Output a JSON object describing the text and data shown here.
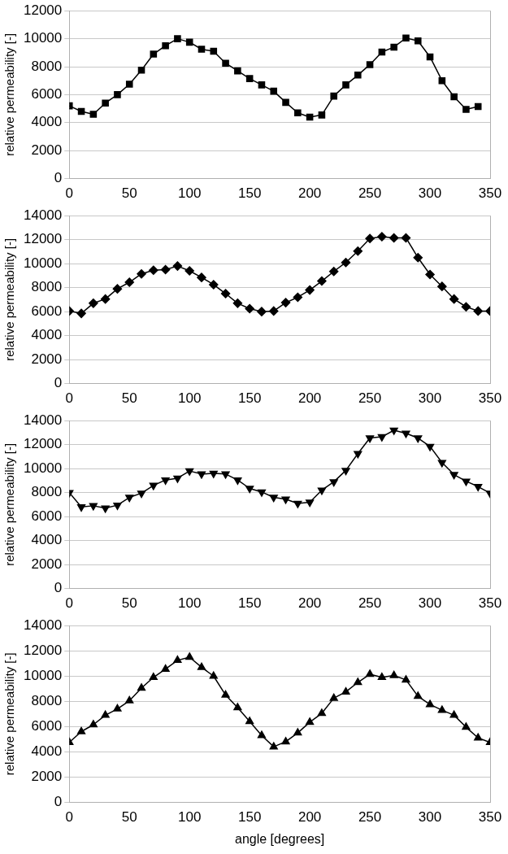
{
  "chart_data": [
    {
      "type": "line",
      "ylabel": "relative permeability [-]",
      "x": [
        0,
        10,
        20,
        30,
        40,
        50,
        60,
        70,
        80,
        90,
        100,
        110,
        120,
        130,
        140,
        150,
        160,
        170,
        180,
        190,
        200,
        210,
        220,
        230,
        240,
        250,
        260,
        270,
        280,
        290,
        300,
        310,
        320,
        330,
        340
      ],
      "series": [
        {
          "color": "#000000",
          "values": [
            5200,
            4800,
            4600,
            5400,
            6000,
            6750,
            7750,
            8900,
            9500,
            10000,
            9750,
            9250,
            9100,
            8250,
            7700,
            7150,
            6700,
            6250,
            5450,
            4700,
            4400,
            4550,
            5900,
            6700,
            7400,
            8150,
            9050,
            9400,
            10050,
            9850,
            8700,
            7000,
            5850,
            4950,
            5150
          ]
        }
      ],
      "xlim": [
        0,
        350
      ],
      "xticks": [
        0,
        50,
        100,
        150,
        200,
        250,
        300,
        350
      ],
      "ylim": [
        0,
        12000
      ],
      "yticks": [
        0,
        2000,
        4000,
        6000,
        8000,
        10000,
        12000
      ],
      "grid": "y",
      "marker": "square",
      "legend": false
    },
    {
      "type": "line",
      "ylabel": "relative permeability [-]",
      "x": [
        0,
        10,
        20,
        30,
        40,
        50,
        60,
        70,
        80,
        90,
        100,
        110,
        120,
        130,
        140,
        150,
        160,
        170,
        180,
        190,
        200,
        210,
        220,
        230,
        240,
        250,
        260,
        270,
        280,
        290,
        300,
        310,
        320,
        330,
        340,
        350
      ],
      "series": [
        {
          "color": "#000000",
          "values": [
            6050,
            5850,
            6700,
            7050,
            7900,
            8450,
            9150,
            9450,
            9500,
            9800,
            9400,
            8850,
            8250,
            7500,
            6700,
            6250,
            6000,
            6050,
            6750,
            7200,
            7800,
            8550,
            9350,
            10100,
            11050,
            12100,
            12250,
            12150,
            12150,
            10500,
            9100,
            8100,
            7050,
            6400,
            6050,
            6050
          ]
        }
      ],
      "xlim": [
        0,
        350
      ],
      "xticks": [
        0,
        50,
        100,
        150,
        200,
        250,
        300,
        350
      ],
      "ylim": [
        0,
        14000
      ],
      "yticks": [
        0,
        2000,
        4000,
        6000,
        8000,
        10000,
        12000,
        14000
      ],
      "grid": "y",
      "marker": "diamond",
      "legend": false
    },
    {
      "type": "line",
      "ylabel": "relative permeability [-]",
      "x": [
        0,
        10,
        20,
        30,
        40,
        50,
        60,
        70,
        80,
        90,
        100,
        110,
        120,
        130,
        140,
        150,
        160,
        170,
        180,
        190,
        200,
        210,
        220,
        230,
        240,
        250,
        260,
        270,
        280,
        290,
        300,
        310,
        320,
        330,
        340,
        350
      ],
      "series": [
        {
          "color": "#000000",
          "values": [
            8000,
            6800,
            6900,
            6700,
            6950,
            7600,
            7950,
            8600,
            9050,
            9200,
            9800,
            9550,
            9600,
            9550,
            9050,
            8350,
            8050,
            7600,
            7450,
            7100,
            7200,
            8200,
            8900,
            9850,
            11250,
            12550,
            12650,
            13200,
            12950,
            12550,
            11850,
            10500,
            9500,
            8950,
            8500,
            7950
          ]
        }
      ],
      "xlim": [
        0,
        350
      ],
      "xticks": [
        0,
        50,
        100,
        150,
        200,
        250,
        300,
        350
      ],
      "ylim": [
        0,
        14000
      ],
      "yticks": [
        0,
        2000,
        4000,
        6000,
        8000,
        10000,
        12000,
        14000
      ],
      "grid": "y",
      "marker": "triangle-down",
      "legend": false
    },
    {
      "type": "line",
      "ylabel": "relative permeability [-]",
      "xlabel": "angle [degrees]",
      "x": [
        0,
        10,
        20,
        30,
        40,
        50,
        60,
        70,
        80,
        90,
        100,
        110,
        120,
        130,
        140,
        150,
        160,
        170,
        180,
        190,
        200,
        210,
        220,
        230,
        240,
        250,
        260,
        270,
        280,
        290,
        300,
        310,
        320,
        330,
        340,
        350
      ],
      "series": [
        {
          "color": "#000000",
          "values": [
            4750,
            5600,
            6150,
            6900,
            7400,
            8050,
            9050,
            9900,
            10550,
            11250,
            11500,
            10700,
            10000,
            8500,
            7500,
            6400,
            5300,
            4400,
            4800,
            5500,
            6350,
            7050,
            8250,
            8750,
            9500,
            10150,
            9900,
            10050,
            9700,
            8400,
            7750,
            7300,
            6900,
            5950,
            5100,
            4750
          ]
        }
      ],
      "xlim": [
        0,
        350
      ],
      "xticks": [
        0,
        50,
        100,
        150,
        200,
        250,
        300,
        350
      ],
      "ylim": [
        0,
        14000
      ],
      "yticks": [
        0,
        2000,
        4000,
        6000,
        8000,
        10000,
        12000,
        14000
      ],
      "grid": "y",
      "marker": "triangle",
      "legend": false
    }
  ]
}
